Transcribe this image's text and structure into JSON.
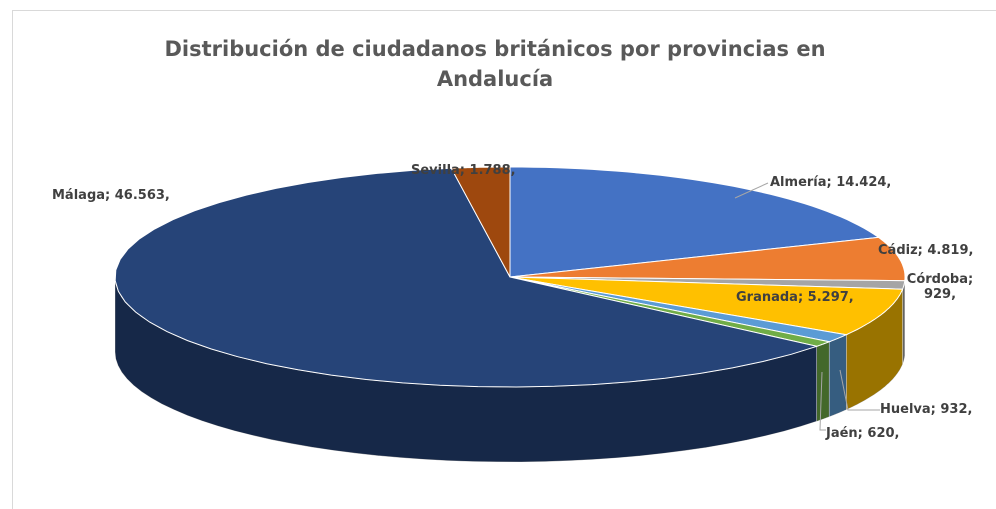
{
  "chart_data": {
    "type": "pie",
    "title": "Distribución de ciudadanos británicos por provincias en Andalucía",
    "values": [
      14424,
      4819,
      929,
      5297,
      932,
      620,
      46563,
      1788
    ],
    "value_labels": [
      "Almería; 14.424,",
      "Cádiz; 4.819,",
      "Córdoba; 929,",
      "Granada; 5.297,",
      "Huelva; 932,",
      "Jaén; 620,",
      "Málaga; 46.563,",
      "Sevilla; 1.788,"
    ],
    "colors": [
      "#4472c4",
      "#ed7d31",
      "#a5a5a5",
      "#ffc000",
      "#5b9bd5",
      "#70ad47",
      "#264478",
      "#9e480e"
    ]
  }
}
